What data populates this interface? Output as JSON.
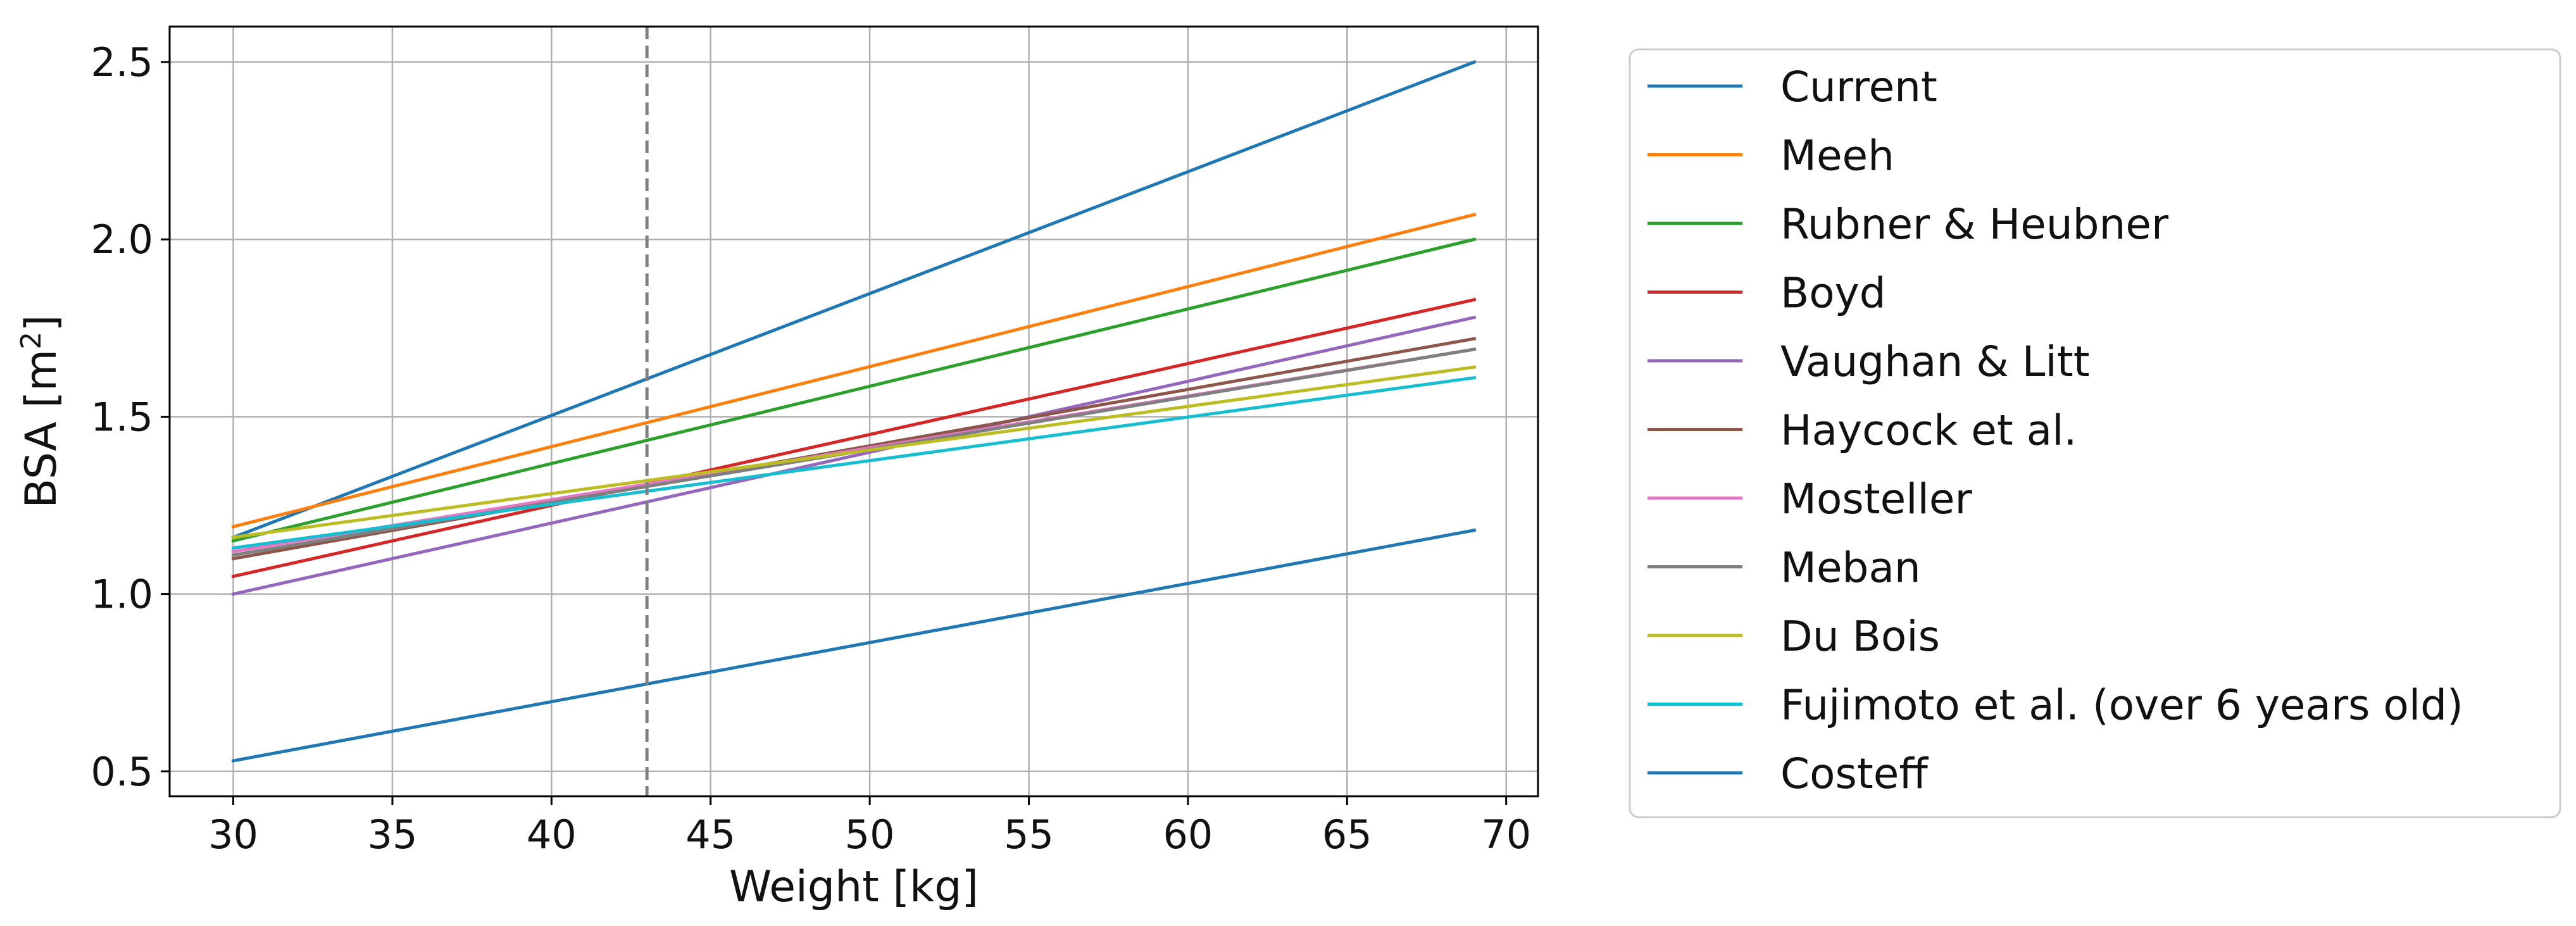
{
  "chart_data": {
    "type": "line",
    "title": "",
    "xlabel": "Weight [kg]",
    "ylabel": "BSA [m²]",
    "ylabel_main": "BSA [m",
    "ylabel_sup": "2",
    "ylabel_close": "]",
    "xlim": [
      28,
      71
    ],
    "ylim": [
      0.43,
      2.6
    ],
    "x": [
      30,
      69
    ],
    "xticks": [
      30,
      35,
      40,
      45,
      50,
      55,
      60,
      65,
      70
    ],
    "yticks": [
      0.5,
      1.0,
      1.5,
      2.0,
      2.5
    ],
    "xtick_labels": [
      "30",
      "35",
      "40",
      "45",
      "50",
      "55",
      "60",
      "65",
      "70"
    ],
    "ytick_labels": [
      "0.5",
      "1.0",
      "1.5",
      "2.0",
      "2.5"
    ],
    "grid": true,
    "legend_position": "outside-right",
    "vertical_marker": {
      "x": 43,
      "style": "dashed",
      "color": "#808080"
    },
    "series": [
      {
        "name": "Current",
        "color": "#1f77b4",
        "values": [
          1.16,
          2.5
        ]
      },
      {
        "name": "Meeh",
        "color": "#ff7f0e",
        "values": [
          1.19,
          2.07
        ]
      },
      {
        "name": "Rubner & Heubner",
        "color": "#2ca02c",
        "values": [
          1.15,
          2.0
        ]
      },
      {
        "name": "Boyd",
        "color": "#d62728",
        "values": [
          1.05,
          1.83
        ]
      },
      {
        "name": "Vaughan & Litt",
        "color": "#9467bd",
        "values": [
          1.0,
          1.78
        ]
      },
      {
        "name": "Haycock et al.",
        "color": "#8c564b",
        "values": [
          1.1,
          1.72
        ]
      },
      {
        "name": "Mosteller",
        "color": "#e377c2",
        "values": [
          1.12,
          1.69
        ]
      },
      {
        "name": "Meban",
        "color": "#7f7f7f",
        "values": [
          1.11,
          1.69
        ]
      },
      {
        "name": "Du Bois",
        "color": "#bcbd22",
        "values": [
          1.16,
          1.64
        ]
      },
      {
        "name": "Fujimoto et al. (over 6 years old)",
        "color": "#17becf",
        "values": [
          1.13,
          1.61
        ]
      },
      {
        "name": "Costeff",
        "color": "#1f77b4",
        "values": [
          0.53,
          1.18
        ]
      }
    ]
  }
}
